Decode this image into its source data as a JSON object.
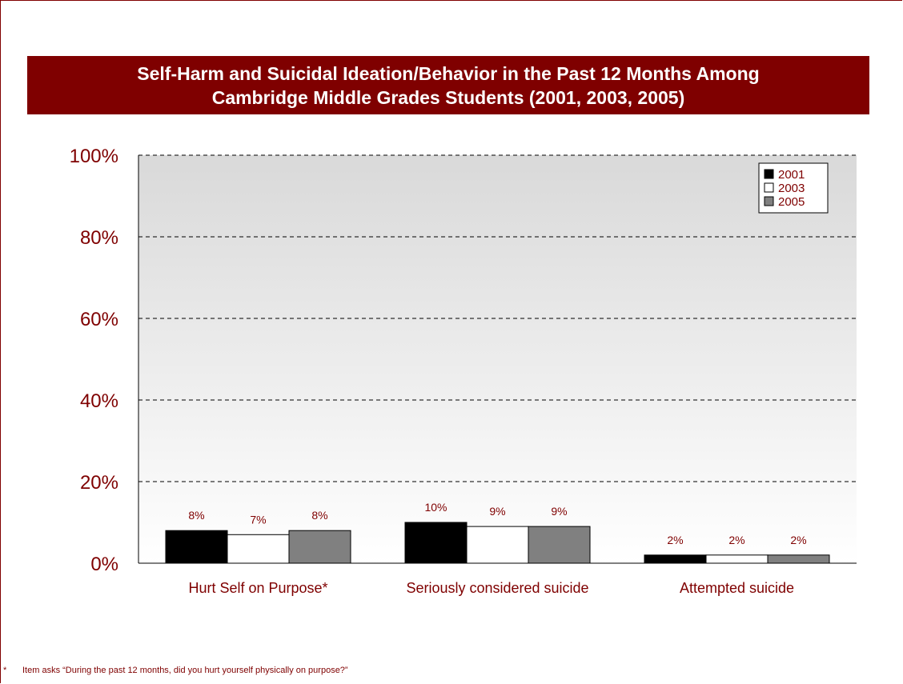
{
  "colors": {
    "accent": "#7f0000",
    "series_2001": "#000000",
    "series_2003": "#ffffff",
    "series_2005": "#808080"
  },
  "footnote": {
    "marker": "*",
    "text": "Item asks “During the past 12 months, did you hurt yourself physically on purpose?”"
  },
  "chart_data": {
    "type": "bar",
    "title": "Self-Harm and Suicidal Ideation/Behavior in the Past 12 Months Among\nCambridge Middle Grades Students (2001, 2003, 2005)",
    "xlabel": "",
    "ylabel": "",
    "categories": [
      "Hurt Self on Purpose*",
      "Seriously considered suicide",
      "Attempted suicide"
    ],
    "series": [
      {
        "name": "2001",
        "values": [
          8,
          10,
          2
        ],
        "labels": [
          "8%",
          "10%",
          "2%"
        ]
      },
      {
        "name": "2003",
        "values": [
          7,
          9,
          2
        ],
        "labels": [
          "7%",
          "9%",
          "2%"
        ]
      },
      {
        "name": "2005",
        "values": [
          8,
          9,
          2
        ],
        "labels": [
          "8%",
          "9%",
          "2%"
        ]
      }
    ],
    "ylim": [
      0,
      100
    ],
    "yticks": [
      0,
      20,
      40,
      60,
      80,
      100
    ],
    "ytick_labels": [
      "0%",
      "20%",
      "40%",
      "60%",
      "80%",
      "100%"
    ],
    "grid": true,
    "legend": "top-right"
  }
}
